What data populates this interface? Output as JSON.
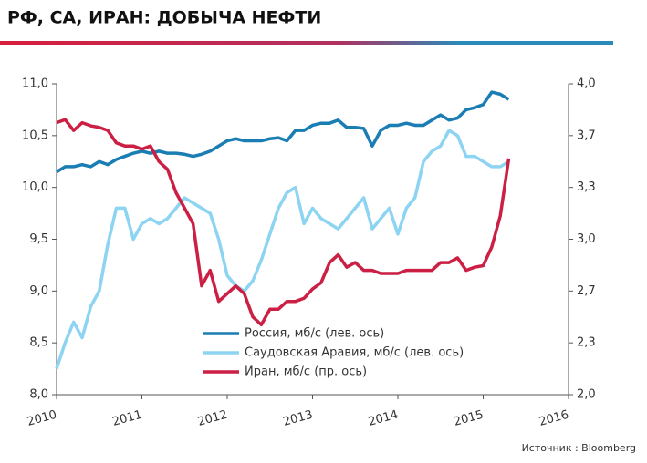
{
  "chart_data": {
    "type": "line",
    "title": "РФ, СА, ИРАН: ДОБЫЧА НЕФТИ",
    "source": "Источник : Bloomberg",
    "x": [
      2010.0,
      2010.1,
      2010.2,
      2010.3,
      2010.4,
      2010.5,
      2010.6,
      2010.7,
      2010.8,
      2010.9,
      2011.0,
      2011.1,
      2011.2,
      2011.3,
      2011.4,
      2011.5,
      2011.6,
      2011.7,
      2011.8,
      2011.9,
      2012.0,
      2012.1,
      2012.2,
      2012.3,
      2012.4,
      2012.5,
      2012.6,
      2012.7,
      2012.8,
      2012.9,
      2013.0,
      2013.1,
      2013.2,
      2013.3,
      2013.4,
      2013.5,
      2013.6,
      2013.7,
      2013.8,
      2013.9,
      2014.0,
      2014.1,
      2014.2,
      2014.3,
      2014.4,
      2014.5,
      2014.6,
      2014.7,
      2014.8,
      2014.9,
      2015.0,
      2015.1,
      2015.2,
      2015.3
    ],
    "series": [
      {
        "name": "Россия, мб/с (лев. ось)",
        "color": "#1a7db3",
        "values": [
          10.15,
          10.2,
          10.2,
          10.22,
          10.2,
          10.25,
          10.22,
          10.27,
          10.3,
          10.33,
          10.35,
          10.33,
          10.35,
          10.33,
          10.33,
          10.32,
          10.3,
          10.32,
          10.35,
          10.4,
          10.45,
          10.47,
          10.45,
          10.45,
          10.45,
          10.47,
          10.48,
          10.45,
          10.55,
          10.55,
          10.6,
          10.62,
          10.62,
          10.65,
          10.58,
          10.58,
          10.57,
          10.4,
          10.55,
          10.6,
          10.6,
          10.62,
          10.6,
          10.6,
          10.65,
          10.7,
          10.65,
          10.67,
          10.75,
          10.77,
          10.8,
          10.92,
          10.9,
          10.85
        ]
      },
      {
        "name": "Саудовская Аравия, мб/с (лев. ось)",
        "color": "#8dd3f2",
        "values": [
          8.25,
          8.5,
          8.7,
          8.55,
          8.85,
          9.0,
          9.45,
          9.8,
          9.8,
          9.5,
          9.65,
          9.7,
          9.65,
          9.7,
          9.8,
          9.9,
          9.85,
          9.8,
          9.75,
          9.5,
          9.15,
          9.05,
          9.0,
          9.1,
          9.3,
          9.55,
          9.8,
          9.95,
          10.0,
          9.65,
          9.8,
          9.7,
          9.65,
          9.6,
          9.7,
          9.8,
          9.9,
          9.6,
          9.7,
          9.8,
          9.55,
          9.8,
          9.9,
          10.25,
          10.35,
          10.4,
          10.55,
          10.5,
          10.3,
          10.3,
          10.25,
          10.2,
          10.2,
          10.25
        ]
      },
      {
        "name": "Иран, мб/с (пр. ось)",
        "color": "#cc1f44",
        "axis": "y2",
        "values": [
          3.75,
          3.77,
          3.7,
          3.75,
          3.73,
          3.72,
          3.7,
          3.62,
          3.6,
          3.6,
          3.58,
          3.6,
          3.5,
          3.45,
          3.3,
          3.2,
          3.1,
          2.7,
          2.8,
          2.6,
          2.65,
          2.7,
          2.65,
          2.5,
          2.45,
          2.55,
          2.55,
          2.6,
          2.6,
          2.62,
          2.68,
          2.72,
          2.85,
          2.9,
          2.82,
          2.85,
          2.8,
          2.8,
          2.78,
          2.78,
          2.78,
          2.8,
          2.8,
          2.8,
          2.8,
          2.85,
          2.85,
          2.88,
          2.8,
          2.82,
          2.83,
          2.95,
          3.15,
          3.52
        ]
      }
    ],
    "xlim": [
      2010,
      2016
    ],
    "xticks": [
      2010,
      2011,
      2012,
      2013,
      2014,
      2015,
      2016
    ],
    "ylim": [
      8,
      11
    ],
    "yticks": [
      {
        "value": 8,
        "label": "8,0"
      },
      {
        "value": 8.5,
        "label": "8,5"
      },
      {
        "value": 9,
        "label": "9,0"
      },
      {
        "value": 9.5,
        "label": "9,5"
      },
      {
        "value": 10,
        "label": "10,0"
      },
      {
        "value": 10.5,
        "label": "10,5"
      },
      {
        "value": 11,
        "label": "11,0"
      }
    ],
    "y2lim": [
      2,
      4
    ],
    "y2ticks": [
      {
        "value": 2,
        "label": "2,0"
      },
      {
        "value": 2.3333,
        "label": "2,3"
      },
      {
        "value": 2.6667,
        "label": "2,7"
      },
      {
        "value": 3,
        "label": "3,0"
      },
      {
        "value": 3.3333,
        "label": "3,3"
      },
      {
        "value": 3.6667,
        "label": "3,7"
      },
      {
        "value": 4,
        "label": "4,0"
      }
    ]
  }
}
